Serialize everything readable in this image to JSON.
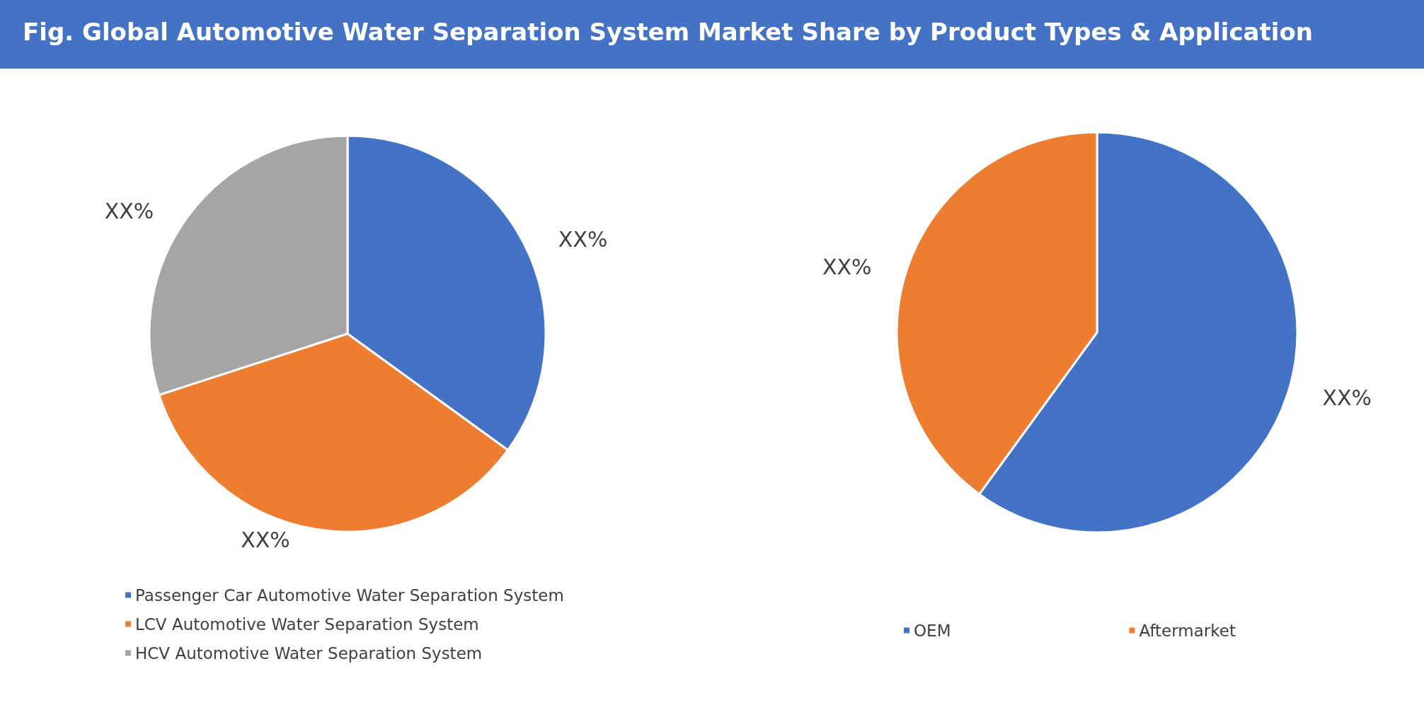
{
  "chart_data": [
    {
      "type": "pie",
      "title": "Fig. Global Automotive Water Separation System Market Share by Product Types & Application",
      "categories": [
        "Passenger Car Automotive Water Separation System",
        "LCV Automotive Water Separation System",
        "HCV Automotive Water Separation System"
      ],
      "values": [
        35,
        35,
        30
      ],
      "colors": [
        "#4472c4",
        "#ed7d31",
        "#a5a5a5"
      ],
      "value_labels": [
        "XX%",
        "XX%",
        "XX%"
      ],
      "legend": "bottom left"
    },
    {
      "type": "pie",
      "categories": [
        "OEM",
        "Aftermarket"
      ],
      "values": [
        60,
        40
      ],
      "colors": [
        "#4472c4",
        "#ed7d31"
      ],
      "value_labels": [
        "XX%",
        "XX%"
      ],
      "legend": "bottom"
    }
  ]
}
